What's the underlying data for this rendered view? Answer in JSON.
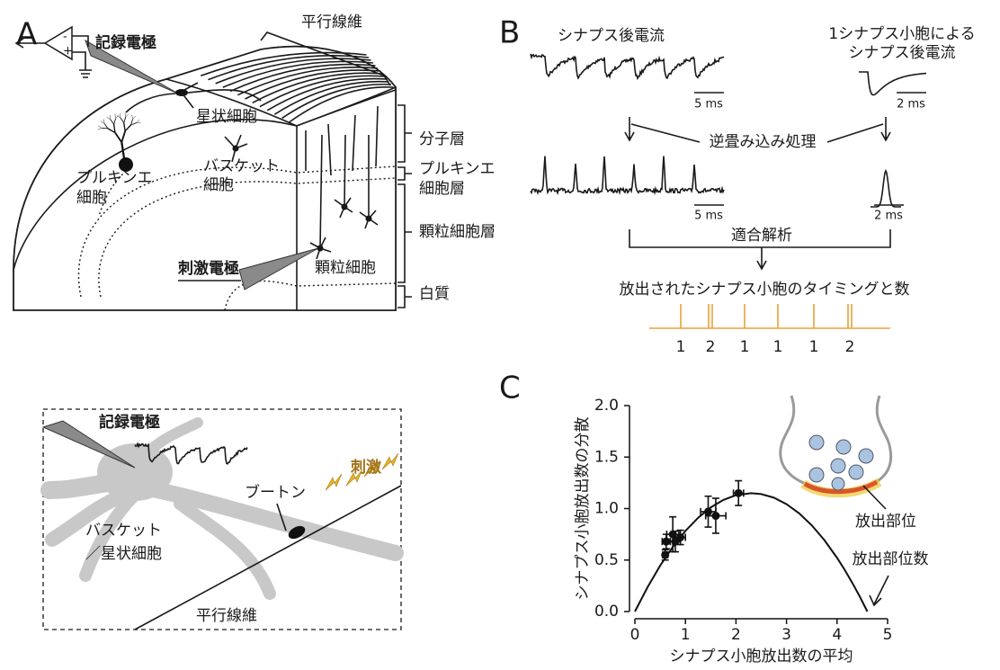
{
  "panel_a": {
    "label": "A",
    "recording_electrode": "記録電極",
    "parallel_fiber": "平行線維",
    "stellate_cell": "星状細胞",
    "purkinje_cell": [
      "プルキンエ",
      "細胞"
    ],
    "basket_cell": [
      "バスケット",
      "細胞"
    ],
    "stimulating_electrode": "刺激電極",
    "granule_cell": "顆粒細胞",
    "amplifier_inputs": [
      "-",
      "+"
    ],
    "layers": [
      [
        "分子層"
      ],
      [
        "プルキンエ",
        "細胞層"
      ],
      [
        "顆粒細胞層"
      ],
      [
        "白質"
      ]
    ]
  },
  "panel_a_inset": {
    "recording_electrode": "記録電極",
    "stimulus": "刺激",
    "bouton": "ブートン",
    "cell": [
      "バスケット",
      "／星状細胞"
    ],
    "parallel_fiber": "平行線維"
  },
  "panel_b": {
    "label": "B",
    "epsc": "シナプス後電流",
    "mepsc": [
      "1シナプス小胞による",
      "シナプス後電流"
    ],
    "scale_bars": [
      "5 ms",
      "2 ms",
      "5 ms",
      "2 ms"
    ],
    "deconvolution": "逆畳み込み処理",
    "fitting": "適合解析",
    "events_title": "放出されたシナプス小胞のタイミングと数",
    "event_counts": [
      1,
      2,
      1,
      1,
      1,
      2
    ]
  },
  "panel_c": {
    "label": "C",
    "annotations": [
      "放出部位",
      "放出部位数"
    ]
  },
  "chart_data": {
    "type": "scatter",
    "xlabel": "シナプス小胞放出数の平均",
    "ylabel": "シナプス小胞放出数の分散",
    "xlim": [
      0,
      5
    ],
    "ylim": [
      0,
      2
    ],
    "xticks": [
      0,
      1,
      2,
      3,
      4,
      5
    ],
    "yticks": [
      {
        "value": 0,
        "label": "0.0"
      },
      {
        "value": 0.5,
        "label": "0.5"
      },
      {
        "value": 1,
        "label": "1.0"
      },
      {
        "value": 1.5,
        "label": "1.5"
      },
      {
        "value": 2,
        "label": "2.0"
      }
    ],
    "series": [
      {
        "color": "#111111",
        "x": [
          0.6,
          0.62,
          0.75,
          0.8,
          0.9,
          1.45,
          1.6,
          2.05
        ],
        "values": [
          0.55,
          0.68,
          0.75,
          0.68,
          0.72,
          0.97,
          0.93,
          1.15
        ],
        "x_err": [
          0.05,
          0.08,
          0.12,
          0.1,
          0.1,
          0.15,
          0.2,
          0.1
        ],
        "y_err": [
          0.05,
          0.07,
          0.17,
          0.1,
          0.07,
          0.15,
          0.17,
          0.12
        ]
      }
    ],
    "fit": {
      "x": [
        0,
        0.25,
        0.5,
        0.75,
        1,
        1.25,
        1.5,
        1.75,
        2,
        2.3,
        2.5,
        2.75,
        3,
        3.25,
        3.5,
        3.75,
        4,
        4.15,
        4.3,
        4.45,
        4.6
      ],
      "y": [
        0,
        0.236,
        0.446,
        0.628,
        0.783,
        0.91,
        1.011,
        1.084,
        1.13,
        1.15,
        1.141,
        1.106,
        1.043,
        0.954,
        0.837,
        0.693,
        0.522,
        0.406,
        0.28,
        0.145,
        0
      ]
    }
  }
}
